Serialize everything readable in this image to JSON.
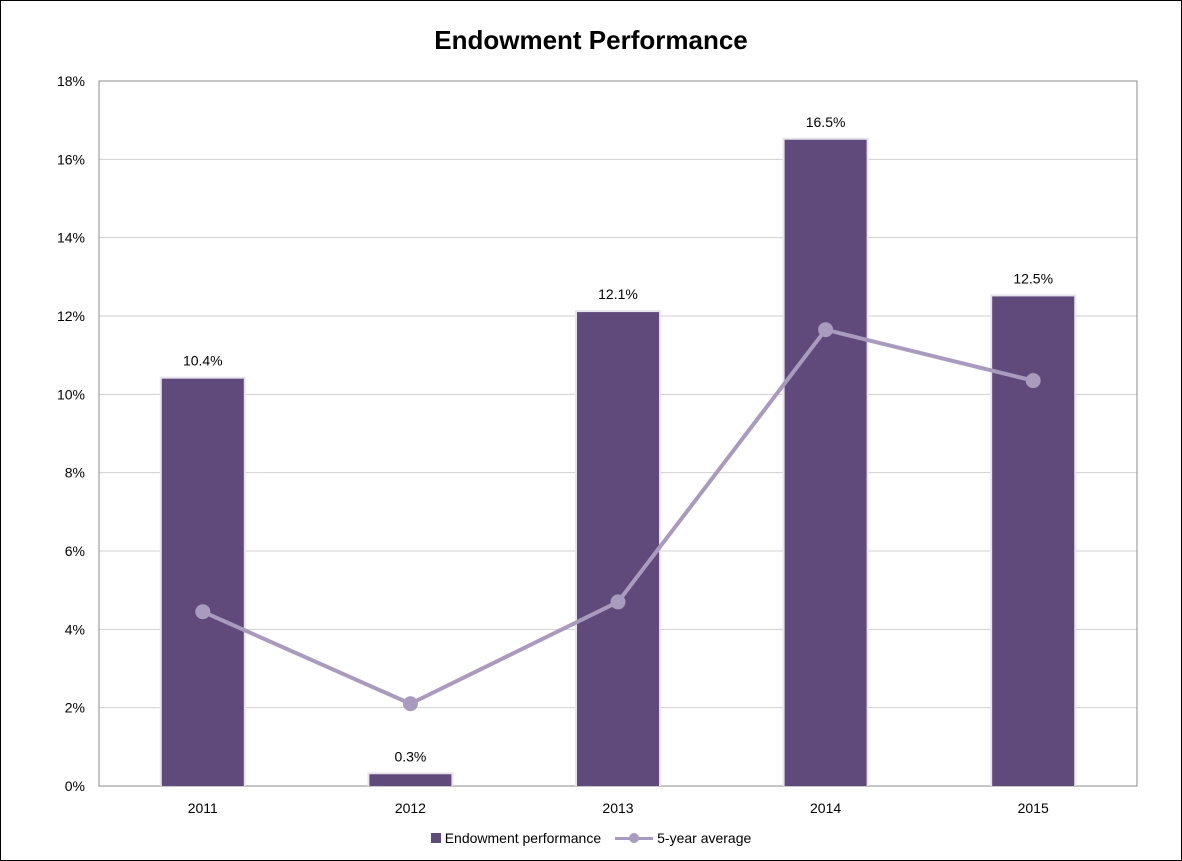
{
  "chart_data": {
    "type": "bar",
    "title": "Endowment Performance",
    "xlabel": "",
    "ylabel": "",
    "categories": [
      "2011",
      "2012",
      "2013",
      "2014",
      "2015"
    ],
    "series": [
      {
        "name": "Endowment performance",
        "kind": "bar",
        "values": [
          10.4,
          0.3,
          12.1,
          16.5,
          12.5
        ],
        "labels": [
          "10.4%",
          "0.3%",
          "12.1%",
          "16.5%",
          "12.5%"
        ],
        "color": "#604a7b"
      },
      {
        "name": "5-year average",
        "kind": "line",
        "values": [
          4.45,
          2.1,
          4.7,
          11.65,
          10.35
        ],
        "color": "#a99bbd"
      }
    ],
    "ylim": [
      0,
      18
    ],
    "yticks": [
      "0%",
      "2%",
      "4%",
      "6%",
      "8%",
      "10%",
      "12%",
      "14%",
      "16%",
      "18%"
    ],
    "grid": true,
    "legend_position": "bottom"
  }
}
